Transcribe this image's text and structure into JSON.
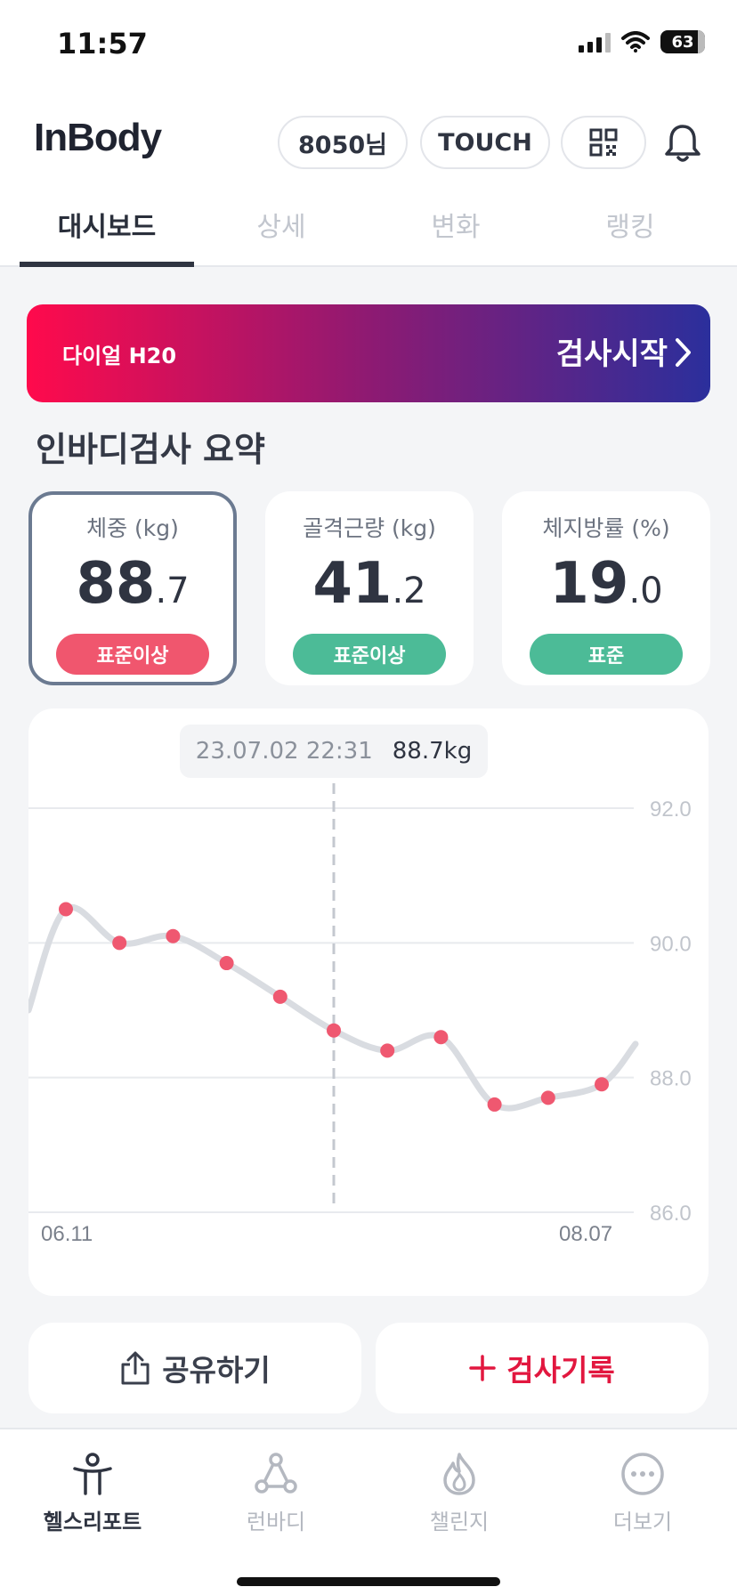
{
  "status": {
    "time": "11:57",
    "battery": "63"
  },
  "header": {
    "logo": "InBody",
    "user_pill": "8050님",
    "touch_pill": "TOUCH",
    "qr_icon": "qr-code-icon",
    "bell_icon": "bell-icon"
  },
  "tabs": [
    {
      "label": "대시보드",
      "active": true
    },
    {
      "label": "상세",
      "active": false
    },
    {
      "label": "변화",
      "active": false
    },
    {
      "label": "랭킹",
      "active": false
    }
  ],
  "banner": {
    "device": "다이얼 H20",
    "action": "검사시작"
  },
  "summary": {
    "title": "인바디검사 요약",
    "cards": [
      {
        "label": "체중 (kg)",
        "int": "88",
        "dec": ".7",
        "badge": "표준이상",
        "badge_color": "#f0566e"
      },
      {
        "label": "골격근량 (kg)",
        "int": "41",
        "dec": ".2",
        "badge": "표준이상",
        "badge_color": "#4cbb97"
      },
      {
        "label": "체지방률 (%)",
        "int": "19",
        "dec": ".0",
        "badge": "표준",
        "badge_color": "#4cbb97"
      }
    ]
  },
  "chart_data": {
    "type": "line",
    "x": [
      "06.11",
      "",
      "",
      "",
      "",
      "",
      "",
      "",
      "",
      "",
      "08.07"
    ],
    "values": [
      90.5,
      90.0,
      90.1,
      89.7,
      89.2,
      88.7,
      88.4,
      88.6,
      87.6,
      87.7,
      87.9
    ],
    "ylim": [
      86.0,
      92.0
    ],
    "y_ticks": [
      "92.0",
      "90.0",
      "88.0",
      "86.0"
    ],
    "x_tick_labels": [
      "06.11",
      "08.07"
    ],
    "selected_index": 5,
    "tooltip": {
      "date": "23.07.02 22:31",
      "value": "88.7kg"
    },
    "grid": true,
    "line_color": "#d9dce1",
    "point_color": "#ef5870"
  },
  "actions": {
    "share": "공유하기",
    "record": "검사기록"
  },
  "bottom_nav": [
    {
      "label": "헬스리포트",
      "icon": "health-report-icon",
      "active": true
    },
    {
      "label": "런바디",
      "icon": "runbody-icon",
      "active": false
    },
    {
      "label": "챌린지",
      "icon": "challenge-flame-icon",
      "active": false
    },
    {
      "label": "더보기",
      "icon": "more-icon",
      "active": false
    }
  ]
}
